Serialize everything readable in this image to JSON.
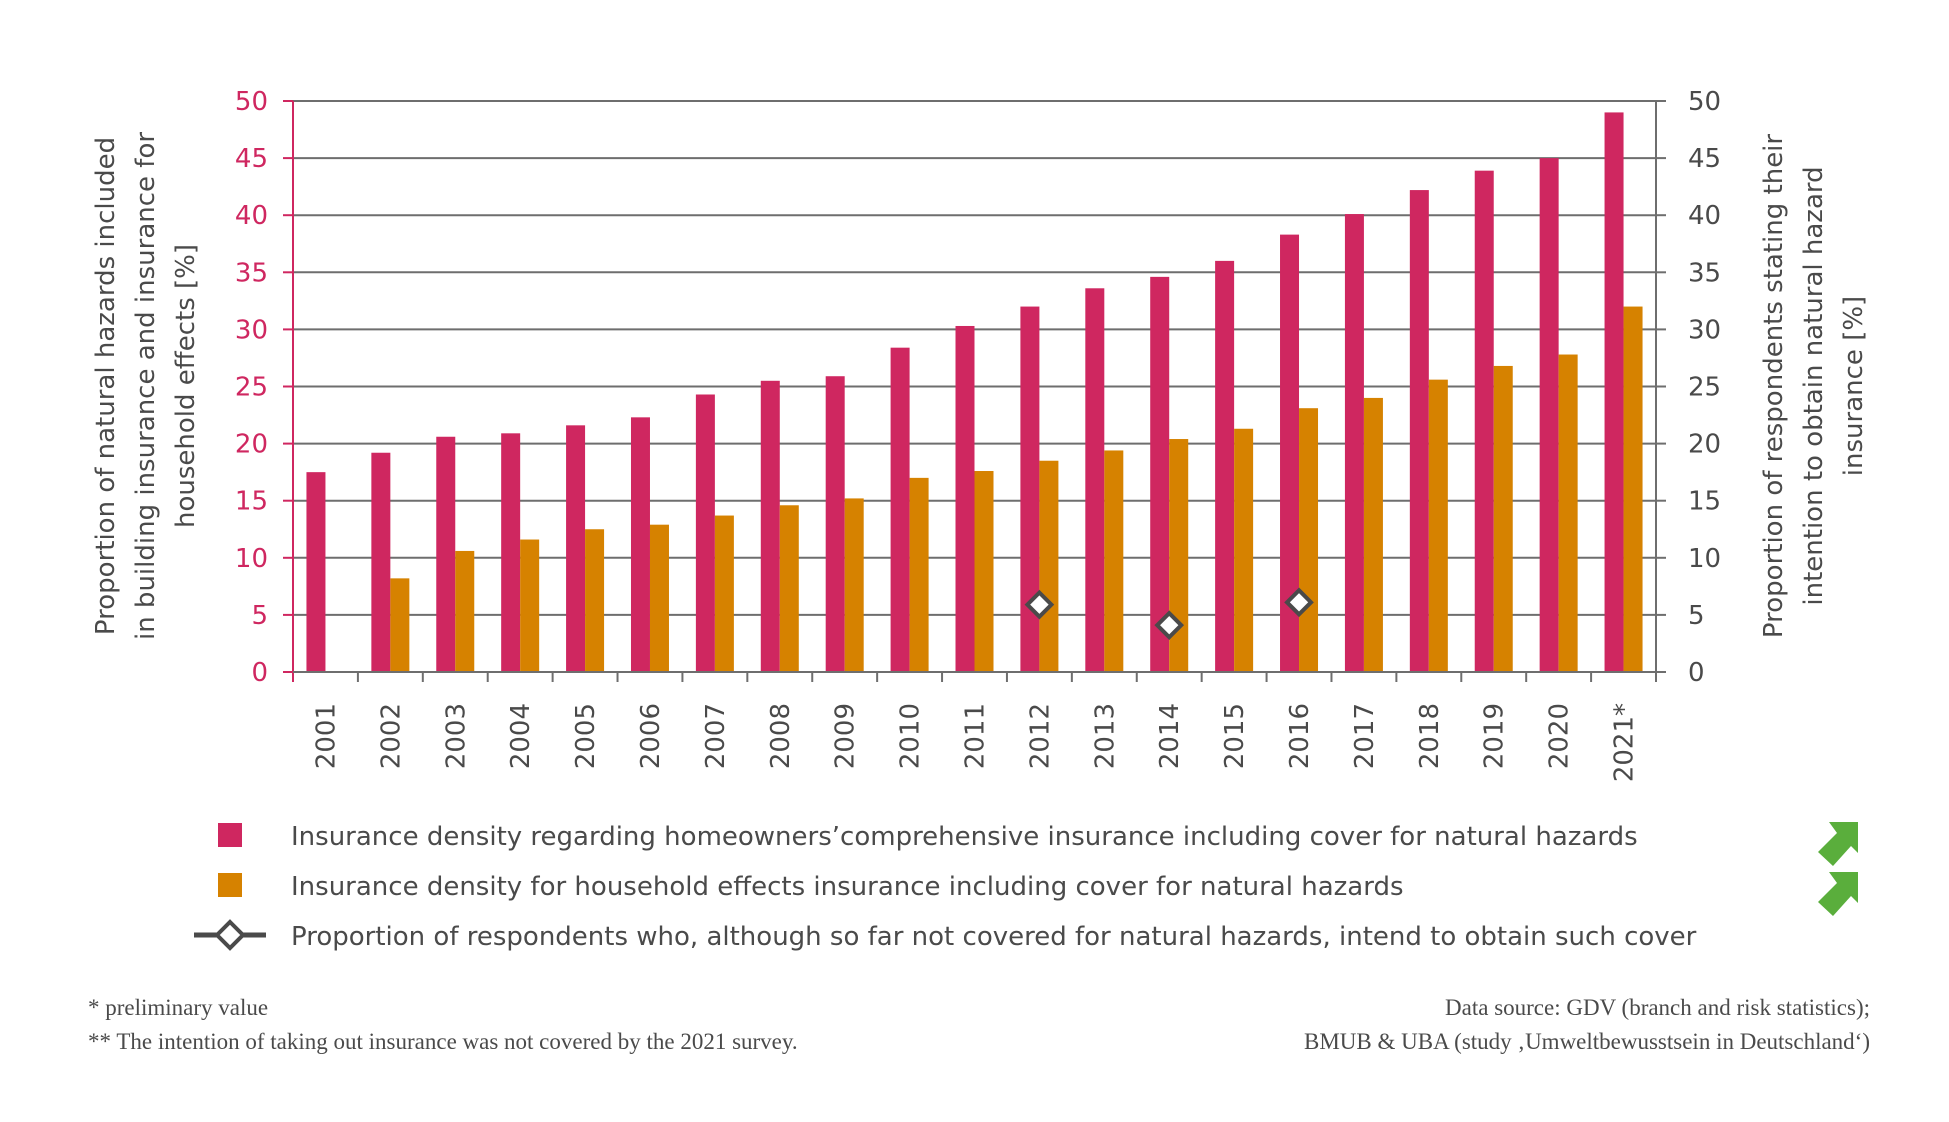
{
  "colors": {
    "homeowners": "#cf2760",
    "household": "#d68200",
    "intention_marker": "#4a4a4a",
    "trend_arrow": "#5aae3c",
    "grid": "#6e6e6e",
    "text": "#4a4a4a"
  },
  "chart_data": {
    "type": "bar",
    "categories": [
      "2001",
      "2002",
      "2003",
      "2004",
      "2005",
      "2006",
      "2007",
      "2008",
      "2009",
      "2010",
      "2011",
      "2012",
      "2013",
      "2014",
      "2015",
      "2016",
      "2017",
      "2018",
      "2019",
      "2020",
      "2021*"
    ],
    "series": [
      {
        "name": "Insurance density regarding homeowners’comprehensive insurance including cover for natural hazards",
        "type": "bar",
        "axis": "left",
        "values": [
          17.5,
          19.2,
          20.6,
          20.9,
          21.6,
          22.3,
          24.3,
          25.5,
          25.9,
          28.4,
          30.3,
          32.0,
          33.6,
          34.6,
          36.0,
          38.3,
          40.1,
          42.2,
          43.9,
          45.0,
          49.0
        ]
      },
      {
        "name": "Insurance density for household effects insurance including cover for natural hazards",
        "type": "bar",
        "axis": "left",
        "values": [
          null,
          8.2,
          10.6,
          11.6,
          12.5,
          12.9,
          13.7,
          14.6,
          15.2,
          17.0,
          17.6,
          18.5,
          19.4,
          20.4,
          21.3,
          23.1,
          24.0,
          25.6,
          26.8,
          27.8,
          32.0
        ]
      },
      {
        "name": "Proportion of respondents who, although so far not covered for natural hazards, intend to obtain such cover",
        "type": "scatter",
        "axis": "right",
        "values": [
          null,
          null,
          null,
          null,
          null,
          null,
          null,
          null,
          null,
          null,
          null,
          5.9,
          null,
          4.1,
          null,
          6.1,
          null,
          null,
          null,
          null,
          null
        ]
      }
    ],
    "ylabel_left": "Proportion of natural hazards included in building insurance and insurance for household effects [%]",
    "ylabel_left_lines": [
      "Proportion of natural hazards included",
      "in building insurance and insurance for",
      "household effects [%]"
    ],
    "ylabel_right": "Proportion of respondents stating their intention to obtain natural hazard insurance [%]",
    "ylabel_right_lines": [
      "Proportion of respondents stating their",
      "intention to obtain natural hazard",
      "insurance [%]"
    ],
    "ylim_left": [
      0,
      50
    ],
    "ylim_right": [
      0,
      50
    ],
    "yticks": [
      "0",
      "5",
      "10",
      "15",
      "20",
      "25",
      "30",
      "35",
      "40",
      "45",
      "50"
    ],
    "grid": true,
    "legend_placement": "bottom"
  },
  "legend": [
    {
      "label": "Insurance density regarding homeowners’comprehensive insurance including cover for natural hazards",
      "marker": "square",
      "trend": "arrow-up-right-icon"
    },
    {
      "label": "Insurance density for household effects insurance including cover for natural hazards",
      "marker": "square",
      "trend": "arrow-up-right-icon"
    },
    {
      "label": "Proportion of respondents who, although so far not covered for natural hazards, intend to obtain such cover",
      "marker": "line-diamond",
      "trend": null
    }
  ],
  "footnotes": {
    "note1": "* preliminary value",
    "note2": "** The intention of taking out insurance was not covered by the 2021 survey.",
    "source1": "Data source: GDV (branch and risk statistics);",
    "source2": "BMUB & UBA (study ‚Umweltbewusstsein in Deutschland‘)"
  }
}
